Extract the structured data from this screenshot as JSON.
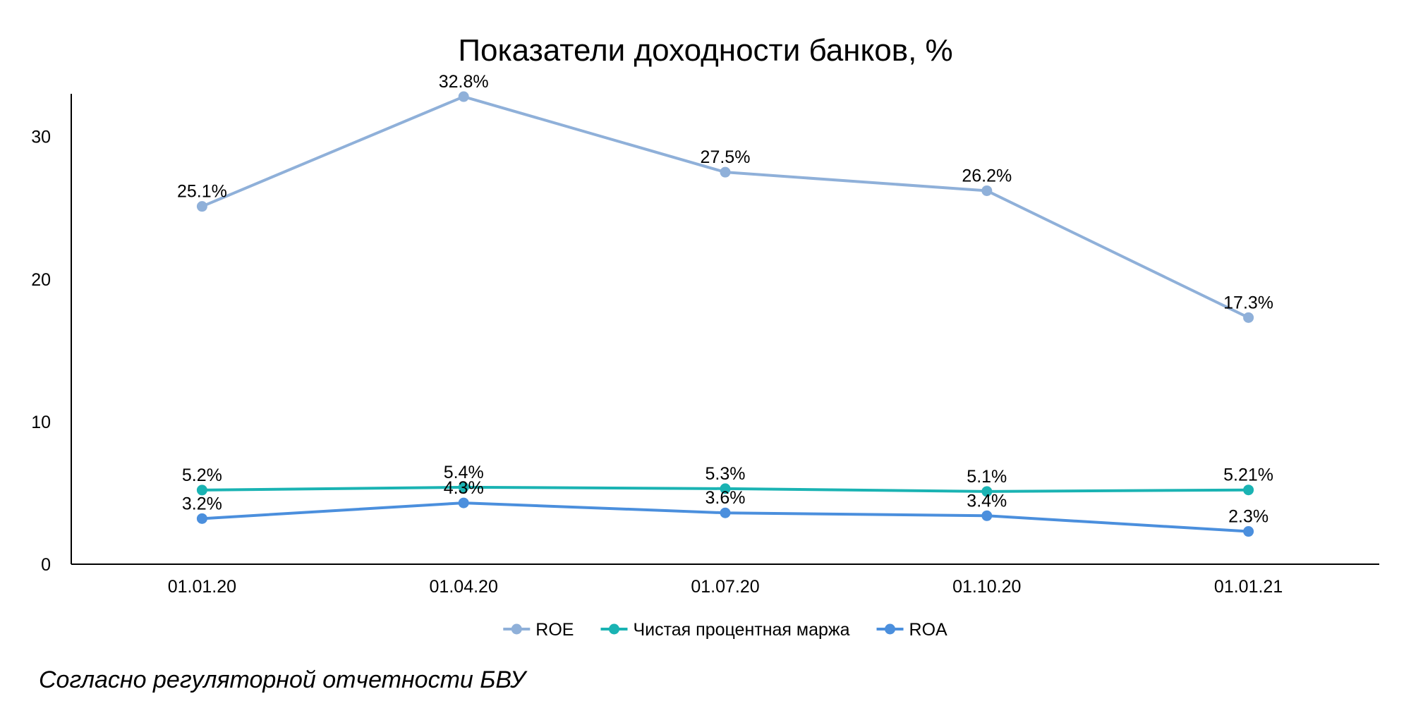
{
  "chart_data": {
    "type": "line",
    "title": "Показатели доходности банков, %",
    "categories": [
      "01.01.20",
      "01.04.20",
      "01.07.20",
      "01.10.20",
      "01.01.21"
    ],
    "ylim": [
      0,
      33
    ],
    "yticks": [
      0,
      10,
      20,
      30
    ],
    "grid": false,
    "legend_position": "bottom",
    "series": [
      {
        "name": "ROE",
        "values": [
          25.1,
          32.8,
          27.5,
          26.2,
          17.3
        ],
        "labels": [
          "25.1%",
          "32.8%",
          "27.5%",
          "26.2%",
          "17.3%"
        ],
        "color": "#8fb0d9"
      },
      {
        "name": "Чистая процентная маржа",
        "values": [
          5.2,
          5.4,
          5.3,
          5.1,
          5.21
        ],
        "labels": [
          "5.2%",
          "5.4%",
          "5.3%",
          "5.1%",
          "5.21%"
        ],
        "color": "#1ab3b3"
      },
      {
        "name": "ROA",
        "values": [
          3.2,
          4.3,
          3.6,
          3.4,
          2.3
        ],
        "labels": [
          "3.2%",
          "4.3%",
          "3.6%",
          "3.4%",
          "2.3%"
        ],
        "color": "#4b8fdd"
      }
    ]
  },
  "footnote": "Согласно регуляторной отчетности БВУ"
}
